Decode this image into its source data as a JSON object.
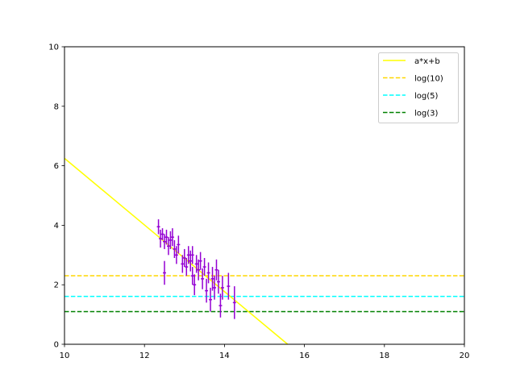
{
  "chart_data": {
    "type": "scatter",
    "title": "",
    "xlabel": "",
    "ylabel": "",
    "xlim": [
      10,
      20
    ],
    "ylim": [
      0,
      10
    ],
    "xticks": [
      "10",
      "12",
      "14",
      "16",
      "18",
      "20"
    ],
    "yticks": [
      "0",
      "2",
      "4",
      "6",
      "8",
      "10"
    ],
    "grid": false,
    "legend_position": "top-right",
    "fit_line": {
      "name": "a*x+b",
      "slope": -1.12,
      "intercept": 17.45,
      "color": "#ffff00"
    },
    "hlines": [
      {
        "name": "log(10)",
        "y": 2.303,
        "color": "#ffd700"
      },
      {
        "name": "log(5)",
        "y": 1.609,
        "color": "#00ffff"
      },
      {
        "name": "log(3)",
        "y": 1.099,
        "color": "#008000"
      }
    ],
    "errorbar_series": {
      "color": "#9400d3",
      "points": [
        {
          "x": 12.35,
          "y": 3.95,
          "yerr": 0.25,
          "xerr": 0.04
        },
        {
          "x": 12.4,
          "y": 3.55,
          "yerr": 0.3,
          "xerr": 0.04
        },
        {
          "x": 12.45,
          "y": 3.7,
          "yerr": 0.2,
          "xerr": 0.04
        },
        {
          "x": 12.5,
          "y": 2.4,
          "yerr": 0.4,
          "xerr": 0.04
        },
        {
          "x": 12.5,
          "y": 3.45,
          "yerr": 0.25,
          "xerr": 0.04
        },
        {
          "x": 12.55,
          "y": 3.6,
          "yerr": 0.25,
          "xerr": 0.04
        },
        {
          "x": 12.6,
          "y": 3.3,
          "yerr": 0.3,
          "xerr": 0.04
        },
        {
          "x": 12.65,
          "y": 3.5,
          "yerr": 0.3,
          "xerr": 0.04
        },
        {
          "x": 12.7,
          "y": 3.6,
          "yerr": 0.3,
          "xerr": 0.04
        },
        {
          "x": 12.75,
          "y": 3.2,
          "yerr": 0.3,
          "xerr": 0.04
        },
        {
          "x": 12.8,
          "y": 3.0,
          "yerr": 0.3,
          "xerr": 0.04
        },
        {
          "x": 12.85,
          "y": 3.35,
          "yerr": 0.3,
          "xerr": 0.04
        },
        {
          "x": 12.95,
          "y": 2.7,
          "yerr": 0.3,
          "xerr": 0.04
        },
        {
          "x": 13.0,
          "y": 2.9,
          "yerr": 0.3,
          "xerr": 0.04
        },
        {
          "x": 13.05,
          "y": 2.6,
          "yerr": 0.3,
          "xerr": 0.04
        },
        {
          "x": 13.1,
          "y": 3.0,
          "yerr": 0.3,
          "xerr": 0.04
        },
        {
          "x": 13.15,
          "y": 2.8,
          "yerr": 0.35,
          "xerr": 0.04
        },
        {
          "x": 13.2,
          "y": 2.3,
          "yerr": 0.3,
          "xerr": 0.04
        },
        {
          "x": 13.2,
          "y": 3.0,
          "yerr": 0.3,
          "xerr": 0.04
        },
        {
          "x": 13.25,
          "y": 2.0,
          "yerr": 0.35,
          "xerr": 0.04
        },
        {
          "x": 13.3,
          "y": 2.7,
          "yerr": 0.3,
          "xerr": 0.04
        },
        {
          "x": 13.35,
          "y": 2.5,
          "yerr": 0.35,
          "xerr": 0.04
        },
        {
          "x": 13.4,
          "y": 2.8,
          "yerr": 0.3,
          "xerr": 0.04
        },
        {
          "x": 13.45,
          "y": 2.2,
          "yerr": 0.35,
          "xerr": 0.04
        },
        {
          "x": 13.5,
          "y": 2.6,
          "yerr": 0.3,
          "xerr": 0.04
        },
        {
          "x": 13.55,
          "y": 1.8,
          "yerr": 0.4,
          "xerr": 0.04
        },
        {
          "x": 13.6,
          "y": 2.4,
          "yerr": 0.35,
          "xerr": 0.04
        },
        {
          "x": 13.65,
          "y": 1.5,
          "yerr": 0.4,
          "xerr": 0.04
        },
        {
          "x": 13.7,
          "y": 2.2,
          "yerr": 0.4,
          "xerr": 0.04
        },
        {
          "x": 13.75,
          "y": 1.9,
          "yerr": 0.4,
          "xerr": 0.04
        },
        {
          "x": 13.8,
          "y": 2.5,
          "yerr": 0.35,
          "xerr": 0.04
        },
        {
          "x": 13.85,
          "y": 2.1,
          "yerr": 0.4,
          "xerr": 0.04
        },
        {
          "x": 13.9,
          "y": 1.3,
          "yerr": 0.4,
          "xerr": 0.04
        },
        {
          "x": 13.95,
          "y": 1.9,
          "yerr": 0.4,
          "xerr": 0.04
        },
        {
          "x": 14.1,
          "y": 1.95,
          "yerr": 0.45,
          "xerr": 0.04
        },
        {
          "x": 14.25,
          "y": 1.4,
          "yerr": 0.55,
          "xerr": 0.04
        }
      ]
    }
  }
}
